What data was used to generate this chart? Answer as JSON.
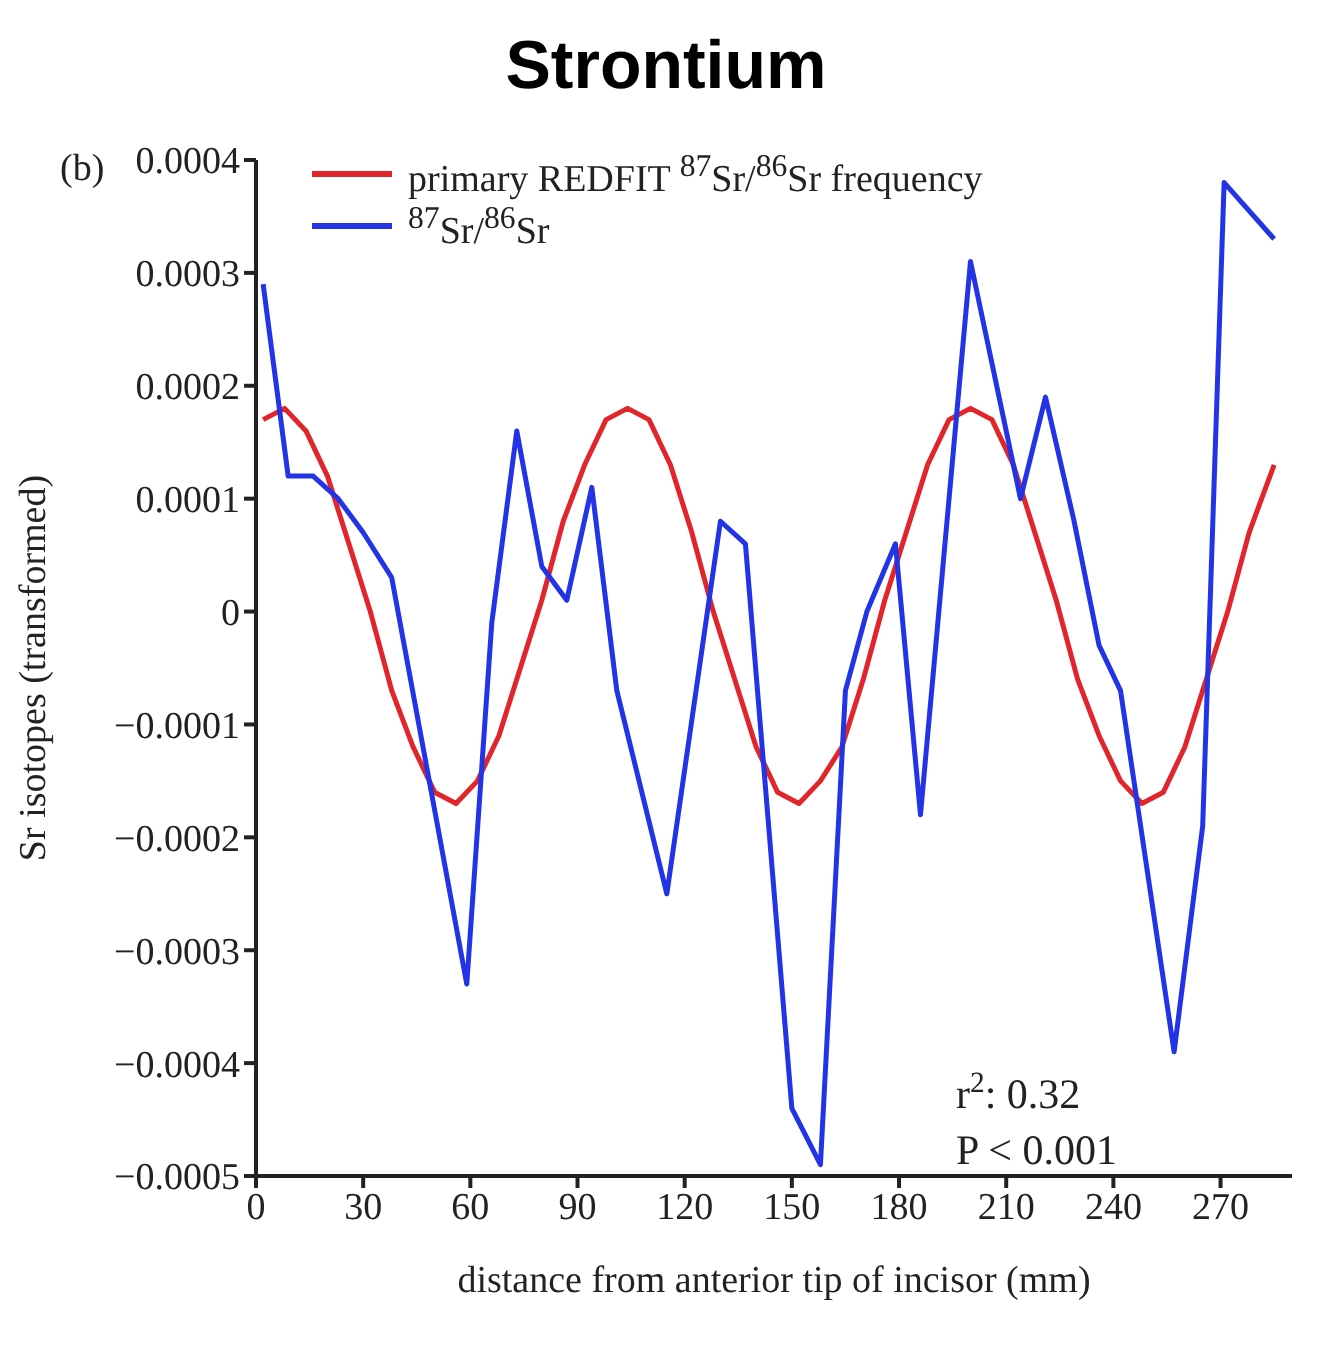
{
  "chart_data": {
    "type": "line",
    "title": "Strontium",
    "xlabel": "distance from anterior tip of incisor (mm)",
    "ylabel": "Sr isotopes (transformed)",
    "annotations": [
      "(b)",
      "r$^{2}$: 0.32",
      "P < 0.001"
    ],
    "series": [
      {
        "name": "primary REDFIT $^{87}$Sr/$^{86}$Sr frequency",
        "color": "#e0262b",
        "x": [
          2,
          8,
          14,
          20,
          26,
          32,
          38,
          44,
          50,
          56,
          62,
          68,
          74,
          80,
          86,
          92,
          98,
          104,
          110,
          116,
          122,
          128,
          134,
          140,
          146,
          152,
          158,
          164,
          170,
          176,
          182,
          188,
          194,
          200,
          206,
          212,
          218,
          224,
          230,
          236,
          242,
          248,
          254,
          260,
          266,
          272,
          278,
          285
        ],
        "values": [
          0.00017,
          0.00018,
          0.00016,
          0.00012,
          6e-05,
          0,
          -7e-05,
          -0.00012,
          -0.00016,
          -0.00017,
          -0.00015,
          -0.00011,
          -5e-05,
          1e-05,
          8e-05,
          0.00013,
          0.00017,
          0.00018,
          0.00017,
          0.00013,
          7e-05,
          0,
          -6e-05,
          -0.00012,
          -0.00016,
          -0.00017,
          -0.00015,
          -0.00012,
          -6e-05,
          1e-05,
          7e-05,
          0.00013,
          0.00017,
          0.00018,
          0.00017,
          0.00013,
          7e-05,
          1e-05,
          -6e-05,
          -0.00011,
          -0.00015,
          -0.00017,
          -0.00016,
          -0.00012,
          -6e-05,
          0,
          7e-05,
          0.00013
        ]
      },
      {
        "name": "$^{87}$Sr/$^{86}$Sr",
        "color": "#2234e6",
        "x": [
          2,
          9,
          16,
          23,
          30,
          38,
          59,
          66,
          73,
          80,
          87,
          94,
          101,
          115,
          130,
          137,
          150,
          158,
          165,
          171,
          179,
          186,
          200,
          214,
          221,
          229,
          236,
          242,
          257,
          265,
          271,
          285
        ],
        "values": [
          0.00029,
          0.00012,
          0.00012,
          0.0001,
          7e-05,
          3e-05,
          -0.00033,
          -1e-05,
          0.00016,
          4e-05,
          1e-05,
          0.00011,
          -7e-05,
          -0.00025,
          8e-05,
          6e-05,
          -0.00044,
          -0.00049,
          -7e-05,
          0,
          6e-05,
          -0.00018,
          0.00031,
          0.0001,
          0.00019,
          8e-05,
          -3e-05,
          -7e-05,
          -0.00039,
          -0.00019,
          0.00038,
          0.00033
        ]
      }
    ],
    "xlim": [
      0,
      290
    ],
    "xticks": [
      0,
      30,
      60,
      90,
      120,
      150,
      180,
      210,
      240,
      270
    ],
    "ylim": [
      -0.0005,
      0.0004
    ],
    "yticks": [
      {
        "value": -0.0005,
        "label": "−0.0005"
      },
      {
        "value": -0.0004,
        "label": "−0.0004"
      },
      {
        "value": -0.0003,
        "label": "−0.0003"
      },
      {
        "value": -0.0002,
        "label": "−0.0002"
      },
      {
        "value": -0.0001,
        "label": "−0.0001"
      },
      0,
      0.0001,
      0.0002,
      0.0003,
      0.0004
    ],
    "legend": "top left",
    "marker": "none",
    "line_style": "solid"
  }
}
